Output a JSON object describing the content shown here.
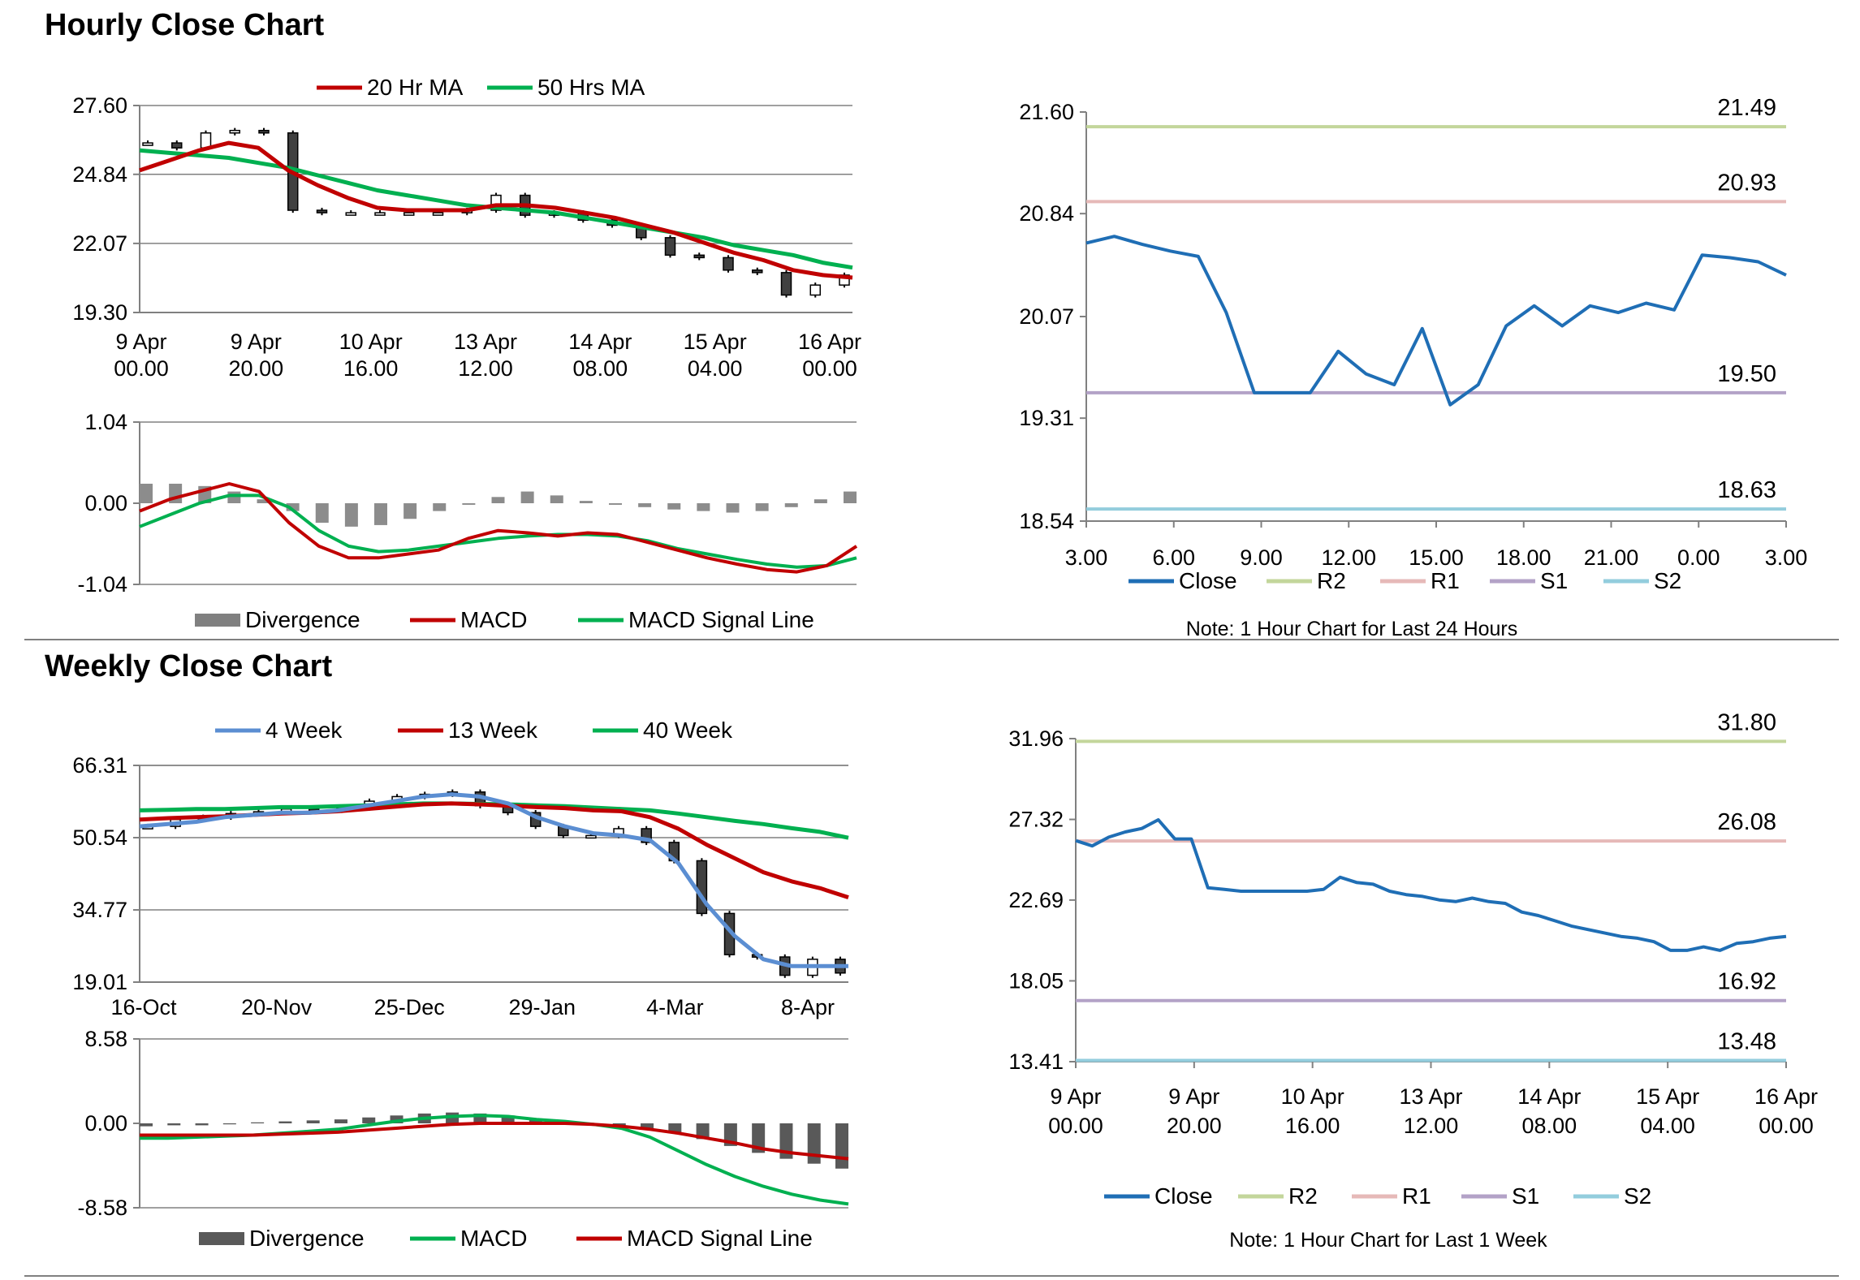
{
  "titles": {
    "hourly": "Hourly Close Chart",
    "weekly": "Weekly Close Chart"
  },
  "colors": {
    "red": "#c00000",
    "green": "#00b050",
    "blue": "#1f6eb5",
    "lightblue": "#5b8ed2",
    "gray": "#808080",
    "darkgray": "#595959",
    "r2": "#c3d69b",
    "r1": "#e6b9b8",
    "s1": "#b3a2c7",
    "s2": "#93cddd",
    "grid": "#808080"
  },
  "chart_data": [
    {
      "id": "hourly-price",
      "type": "candlestick",
      "legend": [
        "20 Hr MA",
        "50 Hrs MA"
      ],
      "y_ticks": [
        "27.60",
        "24.84",
        "22.07",
        "19.30"
      ],
      "ylim": [
        19.3,
        27.6
      ],
      "x_ticks": [
        [
          "9 Apr",
          "00.00"
        ],
        [
          "9 Apr",
          "20.00"
        ],
        [
          "10 Apr",
          "16.00"
        ],
        [
          "13 Apr",
          "12.00"
        ],
        [
          "14 Apr",
          "08.00"
        ],
        [
          "15 Apr",
          "04.00"
        ],
        [
          "16 Apr",
          "00.00"
        ]
      ],
      "ma20": [
        25.0,
        25.4,
        25.8,
        26.1,
        25.9,
        25.0,
        24.4,
        23.9,
        23.5,
        23.4,
        23.4,
        23.4,
        23.6,
        23.6,
        23.5,
        23.3,
        23.1,
        22.8,
        22.5,
        22.1,
        21.7,
        21.4,
        21.0,
        20.8,
        20.7
      ],
      "ma50": [
        25.8,
        25.7,
        25.6,
        25.5,
        25.3,
        25.1,
        24.8,
        24.5,
        24.2,
        24.0,
        23.8,
        23.6,
        23.5,
        23.4,
        23.3,
        23.1,
        22.9,
        22.7,
        22.5,
        22.3,
        22.0,
        21.8,
        21.6,
        21.3,
        21.1
      ],
      "close": [
        26.1,
        25.9,
        26.5,
        26.6,
        26.5,
        23.4,
        23.3,
        23.3,
        23.3,
        23.3,
        23.3,
        23.4,
        24.0,
        23.2,
        23.3,
        23.0,
        22.8,
        22.3,
        21.6,
        21.5,
        21.0,
        20.9,
        20.0,
        20.4,
        20.8
      ]
    },
    {
      "id": "hourly-macd",
      "type": "line+bar",
      "legend": [
        "Divergence",
        "MACD",
        "MACD Signal Line"
      ],
      "y_ticks": [
        "1.04",
        "0.00",
        "-1.04"
      ],
      "ylim": [
        -1.04,
        1.04
      ],
      "divergence": [
        0.25,
        0.25,
        0.22,
        0.15,
        0.05,
        -0.1,
        -0.25,
        -0.3,
        -0.28,
        -0.2,
        -0.1,
        -0.02,
        0.08,
        0.15,
        0.1,
        0.03,
        -0.02,
        -0.05,
        -0.08,
        -0.1,
        -0.12,
        -0.1,
        -0.05,
        0.05,
        0.15
      ],
      "macd": [
        -0.1,
        0.05,
        0.15,
        0.25,
        0.15,
        -0.25,
        -0.55,
        -0.7,
        -0.7,
        -0.65,
        -0.6,
        -0.45,
        -0.35,
        -0.38,
        -0.42,
        -0.38,
        -0.4,
        -0.5,
        -0.6,
        -0.7,
        -0.78,
        -0.85,
        -0.88,
        -0.8,
        -0.55
      ],
      "signal": [
        -0.3,
        -0.15,
        0.0,
        0.1,
        0.1,
        -0.05,
        -0.35,
        -0.55,
        -0.62,
        -0.6,
        -0.55,
        -0.5,
        -0.45,
        -0.42,
        -0.4,
        -0.4,
        -0.42,
        -0.48,
        -0.58,
        -0.65,
        -0.72,
        -0.78,
        -0.82,
        -0.8,
        -0.7
      ]
    },
    {
      "id": "hourly-24h",
      "type": "line",
      "legend": [
        "Close",
        "R2",
        "R1",
        "S1",
        "S2"
      ],
      "y_ticks": [
        "21.60",
        "20.84",
        "20.07",
        "19.31",
        "18.54"
      ],
      "ylim": [
        18.54,
        21.6
      ],
      "x_ticks": [
        "3.00",
        "6.00",
        "9.00",
        "12.00",
        "15.00",
        "18.00",
        "21.00",
        "0.00",
        "3.00"
      ],
      "levels": {
        "R2": 21.49,
        "R1": 20.93,
        "S1": 19.5,
        "S2": 18.63
      },
      "level_labels": {
        "R2": "21.49",
        "R1": "20.93",
        "S1": "19.50",
        "S2": "18.63"
      },
      "close": [
        20.62,
        20.67,
        20.61,
        20.56,
        20.52,
        20.1,
        19.5,
        19.5,
        19.5,
        19.81,
        19.64,
        19.56,
        19.98,
        19.41,
        19.56,
        20.0,
        20.15,
        20.0,
        20.15,
        20.1,
        20.17,
        20.12,
        20.53,
        20.51,
        20.48,
        20.38
      ],
      "note": "Note: 1 Hour Chart for Last 24 Hours"
    },
    {
      "id": "weekly-price",
      "type": "candlestick",
      "legend": [
        "4 Week",
        "13 Week",
        "40 Week"
      ],
      "y_ticks": [
        "66.31",
        "50.54",
        "34.77",
        "19.01"
      ],
      "ylim": [
        19.01,
        66.31
      ],
      "x_ticks": [
        "16-Oct",
        "20-Nov",
        "25-Dec",
        "29-Jan",
        "4-Mar",
        "8-Apr"
      ],
      "close": [
        53.0,
        54.5,
        55.0,
        55.8,
        56.2,
        56.8,
        56.5,
        57.0,
        58.5,
        59.5,
        60.0,
        60.5,
        57.5,
        56.0,
        53.0,
        51.0,
        51.0,
        52.5,
        49.5,
        45.5,
        34.0,
        25.0,
        24.5,
        20.5,
        24.0,
        21.0
      ],
      "w4": [
        53,
        53.5,
        54,
        55,
        55.5,
        56,
        56,
        56.5,
        57.5,
        58.5,
        59.5,
        60,
        59.5,
        58,
        55,
        53,
        51.5,
        51,
        50,
        45,
        36,
        29,
        24,
        22.5,
        22.5,
        22.5
      ],
      "w13": [
        54.5,
        54.8,
        55,
        55.2,
        55.5,
        55.8,
        56,
        56.3,
        56.8,
        57.3,
        57.8,
        58,
        57.8,
        57.5,
        57.2,
        57,
        56.5,
        56.3,
        55,
        52.5,
        49,
        46,
        43,
        41,
        39.5,
        37.5
      ],
      "w40": [
        56.5,
        56.6,
        56.8,
        56.8,
        57,
        57.2,
        57.2,
        57.4,
        57.6,
        57.8,
        58,
        58,
        57.9,
        57.8,
        57.6,
        57.4,
        57.1,
        56.8,
        56.5,
        55.8,
        55,
        54.2,
        53.5,
        52.6,
        51.8,
        50.5
      ]
    },
    {
      "id": "weekly-macd",
      "type": "line+bar",
      "legend": [
        "Divergence",
        "MACD",
        "MACD Signal Line"
      ],
      "y_ticks": [
        "8.58",
        "0.00",
        "-8.58"
      ],
      "ylim": [
        -8.58,
        8.58
      ],
      "divergence": [
        -0.3,
        -0.2,
        -0.2,
        -0.1,
        0.1,
        0.2,
        0.3,
        0.4,
        0.6,
        0.8,
        1.0,
        1.1,
        1.0,
        0.8,
        0.5,
        0.2,
        -0.1,
        -0.3,
        -0.6,
        -1.0,
        -1.6,
        -2.3,
        -3.0,
        -3.6,
        -4.1,
        -4.6
      ],
      "macd": [
        -1.5,
        -1.5,
        -1.4,
        -1.3,
        -1.2,
        -1.0,
        -0.8,
        -0.6,
        -0.2,
        0.2,
        0.5,
        0.7,
        0.8,
        0.7,
        0.4,
        0.2,
        -0.1,
        -0.5,
        -1.4,
        -2.8,
        -4.2,
        -5.4,
        -6.4,
        -7.2,
        -7.8,
        -8.2
      ],
      "signal": [
        -1.2,
        -1.2,
        -1.2,
        -1.2,
        -1.2,
        -1.1,
        -1.0,
        -0.9,
        -0.7,
        -0.5,
        -0.3,
        -0.1,
        0.0,
        0.0,
        0.0,
        0.0,
        -0.1,
        -0.3,
        -0.6,
        -1.0,
        -1.5,
        -2.0,
        -2.6,
        -3.0,
        -3.3,
        -3.6
      ]
    },
    {
      "id": "weekly-1w",
      "type": "line",
      "legend": [
        "Close",
        "R2",
        "R1",
        "S1",
        "S2"
      ],
      "y_ticks": [
        "31.96",
        "27.32",
        "22.69",
        "18.05",
        "13.41"
      ],
      "ylim": [
        13.41,
        31.96
      ],
      "x_ticks": [
        [
          "9 Apr",
          "00.00"
        ],
        [
          "9 Apr",
          "20.00"
        ],
        [
          "10 Apr",
          "16.00"
        ],
        [
          "13 Apr",
          "12.00"
        ],
        [
          "14 Apr",
          "08.00"
        ],
        [
          "15 Apr",
          "04.00"
        ],
        [
          "16 Apr",
          "00.00"
        ]
      ],
      "levels": {
        "R2": 31.8,
        "R1": 26.08,
        "S1": 16.92,
        "S2": 13.48
      },
      "level_labels": {
        "R2": "31.80",
        "R1": "26.08",
        "S1": "16.92",
        "S2": "13.48"
      },
      "close": [
        26.1,
        25.8,
        26.3,
        26.6,
        26.8,
        27.3,
        26.2,
        26.2,
        23.4,
        23.3,
        23.2,
        23.2,
        23.2,
        23.2,
        23.2,
        23.3,
        24.0,
        23.7,
        23.6,
        23.2,
        23.0,
        22.9,
        22.7,
        22.6,
        22.8,
        22.6,
        22.5,
        22.0,
        21.8,
        21.5,
        21.2,
        21.0,
        20.8,
        20.6,
        20.5,
        20.3,
        19.8,
        19.8,
        20.0,
        19.8,
        20.2,
        20.3,
        20.5,
        20.6
      ],
      "note": "Note: 1 Hour Chart for Last 1 Week"
    }
  ]
}
